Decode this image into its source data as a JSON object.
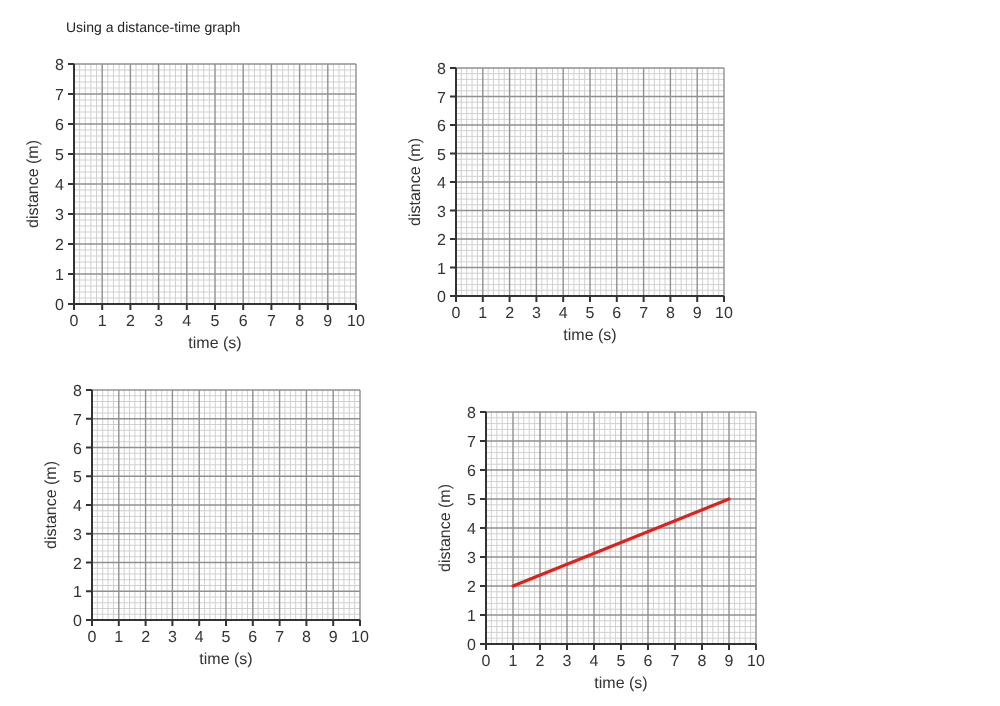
{
  "chart_data": [
    {
      "type": "line",
      "title": "Using a distance-time graph",
      "xlabel": "time (s)",
      "ylabel": "distance (m)",
      "xlim": [
        0,
        10
      ],
      "ylim": [
        0,
        8
      ],
      "xticks": [
        0,
        1,
        2,
        3,
        4,
        5,
        6,
        7,
        8,
        9,
        10
      ],
      "yticks": [
        0,
        1,
        2,
        3,
        4,
        5,
        6,
        7,
        8
      ],
      "grid": true
    },
    {
      "type": "line",
      "xlabel": "time (s)",
      "ylabel": "distance (m)",
      "xlim": [
        0,
        10
      ],
      "ylim": [
        0,
        8
      ],
      "xticks": [
        0,
        1,
        2,
        3,
        4,
        5,
        6,
        7,
        8,
        9,
        10
      ],
      "yticks": [
        0,
        1,
        2,
        3,
        4,
        5,
        6,
        7,
        8
      ],
      "grid": true
    },
    {
      "type": "line",
      "xlabel": "time (s)",
      "ylabel": "distance (m)",
      "xlim": [
        0,
        10
      ],
      "ylim": [
        0,
        8
      ],
      "xticks": [
        0,
        1,
        2,
        3,
        4,
        5,
        6,
        7,
        8,
        9,
        10
      ],
      "yticks": [
        0,
        1,
        2,
        3,
        4,
        5,
        6,
        7,
        8
      ],
      "grid": true
    },
    {
      "type": "line",
      "xlabel": "time (s)",
      "ylabel": "distance (m)",
      "xlim": [
        0,
        10
      ],
      "ylim": [
        0,
        8
      ],
      "xticks": [
        0,
        1,
        2,
        3,
        4,
        5,
        6,
        7,
        8,
        9,
        10
      ],
      "yticks": [
        0,
        1,
        2,
        3,
        4,
        5,
        6,
        7,
        8
      ],
      "grid": true,
      "series": [
        {
          "color": "#e0201c",
          "x": [
            1,
            9
          ],
          "values": [
            2,
            5
          ]
        }
      ]
    }
  ]
}
